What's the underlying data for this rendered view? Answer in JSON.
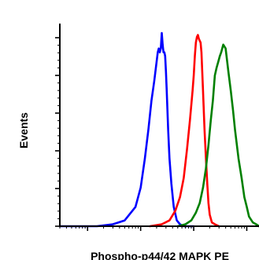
{
  "chart_data": {
    "type": "line",
    "title": "",
    "xlabel": "Phospho-p44/42 MAPK PE",
    "ylabel": "Events",
    "x_scale": "log",
    "xlim": [
      0.3,
      1700
    ],
    "ylim": [
      0,
      1.0
    ],
    "grid": false,
    "legend": "none",
    "series": [
      {
        "color": "#0000ff",
        "x": [
          0.3,
          1.5,
          3,
          5,
          8,
          10,
          12,
          14,
          16,
          18,
          20,
          21,
          22,
          23,
          24,
          25,
          26,
          27,
          28,
          29,
          30,
          31,
          32,
          33,
          34,
          35,
          38,
          42,
          48,
          55,
          65,
          80,
          100
        ],
        "y": [
          0.0,
          0.0,
          0.01,
          0.03,
          0.1,
          0.2,
          0.35,
          0.5,
          0.65,
          0.75,
          0.85,
          0.9,
          0.92,
          0.9,
          0.92,
          1.0,
          0.94,
          0.9,
          0.9,
          0.88,
          0.8,
          0.7,
          0.6,
          0.5,
          0.42,
          0.35,
          0.22,
          0.1,
          0.03,
          0.01,
          0.0,
          0.0,
          0.0
        ]
      },
      {
        "color": "#ff0000",
        "x": [
          15,
          25,
          35,
          45,
          55,
          65,
          75,
          85,
          95,
          100,
          105,
          110,
          115,
          120,
          125,
          130,
          135,
          140,
          145,
          150,
          160,
          170,
          180,
          190,
          200,
          220,
          250,
          300
        ],
        "y": [
          0.0,
          0.01,
          0.03,
          0.08,
          0.15,
          0.25,
          0.4,
          0.55,
          0.7,
          0.78,
          0.88,
          0.95,
          0.98,
          0.99,
          0.97,
          0.96,
          0.95,
          0.9,
          0.8,
          0.7,
          0.5,
          0.35,
          0.22,
          0.12,
          0.06,
          0.02,
          0.01,
          0.0
        ]
      },
      {
        "color": "#008000",
        "x": [
          50,
          70,
          90,
          110,
          130,
          150,
          170,
          190,
          210,
          230,
          250,
          270,
          290,
          310,
          330,
          360,
          400,
          450,
          500,
          550,
          600,
          700,
          800,
          900,
          1000,
          1100,
          1300,
          1500,
          1700
        ],
        "y": [
          0.0,
          0.01,
          0.03,
          0.07,
          0.12,
          0.2,
          0.3,
          0.42,
          0.55,
          0.65,
          0.78,
          0.82,
          0.85,
          0.88,
          0.9,
          0.94,
          0.92,
          0.8,
          0.7,
          0.6,
          0.5,
          0.35,
          0.25,
          0.15,
          0.1,
          0.05,
          0.02,
          0.01,
          0.0
        ]
      }
    ]
  }
}
